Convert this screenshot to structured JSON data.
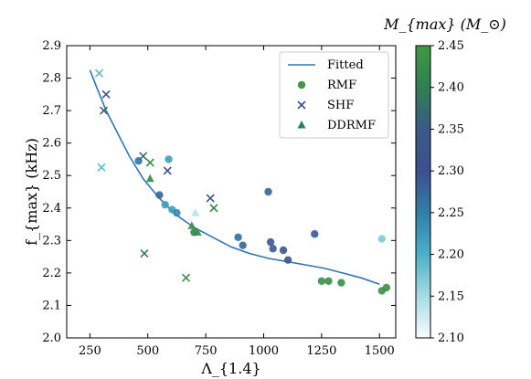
{
  "chart_data": {
    "type": "scatter",
    "xlabel": "Λ_{1.4}",
    "ylabel": "f_{max} (kHz)",
    "xlim": [
      150,
      1570
    ],
    "ylim": [
      2.0,
      2.9
    ],
    "xticks": [
      250,
      500,
      750,
      1000,
      1250,
      1500
    ],
    "yticks": [
      2.0,
      2.1,
      2.2,
      2.3,
      2.4,
      2.5,
      2.6,
      2.7,
      2.8,
      2.9
    ],
    "grid": false,
    "legend_position": "top-right",
    "colorbar": {
      "label": "M_{max} (M_⊙)",
      "range": [
        2.1,
        2.45
      ],
      "ticks": [
        2.1,
        2.15,
        2.2,
        2.25,
        2.3,
        2.35,
        2.4,
        2.45
      ],
      "colors": [
        "#f7fcfd",
        "#a6dbe5",
        "#4ab0c8",
        "#2f80a8",
        "#3d4f8f",
        "#3a5a88",
        "#2f7f52",
        "#3f9a40"
      ]
    },
    "series": [
      {
        "name": "Fitted",
        "type": "line",
        "color": "#2e75b6",
        "x": [
          250,
          280,
          320,
          370,
          420,
          480,
          550,
          620,
          700,
          780,
          860,
          940,
          1020,
          1100,
          1180,
          1260,
          1340,
          1420,
          1500
        ],
        "y": [
          2.825,
          2.77,
          2.7,
          2.63,
          2.56,
          2.49,
          2.43,
          2.38,
          2.34,
          2.31,
          2.28,
          2.26,
          2.245,
          2.235,
          2.225,
          2.215,
          2.2,
          2.185,
          2.165
        ]
      },
      {
        "name": "RMF",
        "marker": "circle",
        "points": [
          {
            "x": 460,
            "y": 2.545,
            "m": 2.26
          },
          {
            "x": 550,
            "y": 2.44,
            "m": 2.28
          },
          {
            "x": 575,
            "y": 2.41,
            "m": 2.22
          },
          {
            "x": 590,
            "y": 2.55,
            "m": 2.22
          },
          {
            "x": 605,
            "y": 2.395,
            "m": 2.22
          },
          {
            "x": 625,
            "y": 2.385,
            "m": 2.24
          },
          {
            "x": 700,
            "y": 2.325,
            "m": 2.41
          },
          {
            "x": 890,
            "y": 2.31,
            "m": 2.27
          },
          {
            "x": 910,
            "y": 2.285,
            "m": 2.28
          },
          {
            "x": 1020,
            "y": 2.45,
            "m": 2.28
          },
          {
            "x": 1030,
            "y": 2.295,
            "m": 2.34
          },
          {
            "x": 1040,
            "y": 2.275,
            "m": 2.29
          },
          {
            "x": 1085,
            "y": 2.27,
            "m": 2.35
          },
          {
            "x": 1105,
            "y": 2.24,
            "m": 2.33
          },
          {
            "x": 1220,
            "y": 2.32,
            "m": 2.29
          },
          {
            "x": 1250,
            "y": 2.175,
            "m": 2.43
          },
          {
            "x": 1280,
            "y": 2.175,
            "m": 2.43
          },
          {
            "x": 1335,
            "y": 2.17,
            "m": 2.43
          },
          {
            "x": 1510,
            "y": 2.145,
            "m": 2.43
          },
          {
            "x": 1530,
            "y": 2.155,
            "m": 2.43
          },
          {
            "x": 1510,
            "y": 2.305,
            "m": 2.17
          }
        ]
      },
      {
        "name": "SHF",
        "marker": "x",
        "points": [
          {
            "x": 290,
            "y": 2.815,
            "m": 2.19
          },
          {
            "x": 300,
            "y": 2.525,
            "m": 2.19
          },
          {
            "x": 310,
            "y": 2.7,
            "m": 2.36
          },
          {
            "x": 320,
            "y": 2.75,
            "m": 2.32
          },
          {
            "x": 480,
            "y": 2.56,
            "m": 2.37
          },
          {
            "x": 485,
            "y": 2.26,
            "m": 2.39
          },
          {
            "x": 510,
            "y": 2.54,
            "m": 2.43
          },
          {
            "x": 585,
            "y": 2.515,
            "m": 2.3
          },
          {
            "x": 665,
            "y": 2.185,
            "m": 2.43
          },
          {
            "x": 770,
            "y": 2.43,
            "m": 2.34
          },
          {
            "x": 785,
            "y": 2.4,
            "m": 2.41
          }
        ]
      },
      {
        "name": "DDRMF",
        "marker": "triangle",
        "points": [
          {
            "x": 510,
            "y": 2.49,
            "m": 2.42
          },
          {
            "x": 690,
            "y": 2.345,
            "m": 2.43
          },
          {
            "x": 705,
            "y": 2.385,
            "m": 2.14
          },
          {
            "x": 715,
            "y": 2.325,
            "m": 2.43
          }
        ]
      }
    ]
  }
}
